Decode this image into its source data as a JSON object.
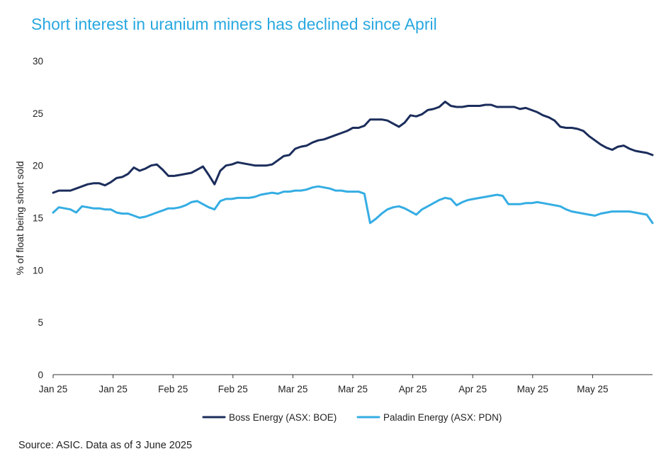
{
  "chart_data": {
    "type": "line",
    "title": "Short interest in uranium miners has declined since April",
    "ylabel": "% of float being short sold",
    "xlabel": "",
    "ylim": [
      0,
      30
    ],
    "yticks": [
      0,
      5,
      10,
      15,
      20,
      25,
      30
    ],
    "xtick_labels": [
      "Jan 25",
      "Jan 25",
      "Feb 25",
      "Feb 25",
      "Mar 25",
      "Mar 25",
      "Apr 25",
      "Apr 25",
      "May 25",
      "May 25"
    ],
    "grid": false,
    "legend_position": "bottom-center",
    "x": [
      "2025-01-02",
      "2025-01-03",
      "2025-01-06",
      "2025-01-07",
      "2025-01-08",
      "2025-01-09",
      "2025-01-10",
      "2025-01-13",
      "2025-01-14",
      "2025-01-15",
      "2025-01-16",
      "2025-01-17",
      "2025-01-20",
      "2025-01-21",
      "2025-01-22",
      "2025-01-23",
      "2025-01-24",
      "2025-01-27",
      "2025-01-28",
      "2025-01-29",
      "2025-01-30",
      "2025-01-31",
      "2025-02-03",
      "2025-02-04",
      "2025-02-05",
      "2025-02-06",
      "2025-02-07",
      "2025-02-10",
      "2025-02-11",
      "2025-02-12",
      "2025-02-13",
      "2025-02-14",
      "2025-02-17",
      "2025-02-18",
      "2025-02-19",
      "2025-02-20",
      "2025-02-21",
      "2025-02-24",
      "2025-02-25",
      "2025-02-26",
      "2025-02-27",
      "2025-02-28",
      "2025-03-03",
      "2025-03-04",
      "2025-03-05",
      "2025-03-06",
      "2025-03-07",
      "2025-03-10",
      "2025-03-11",
      "2025-03-12",
      "2025-03-13",
      "2025-03-14",
      "2025-03-17",
      "2025-03-18",
      "2025-03-19",
      "2025-03-20",
      "2025-03-21",
      "2025-03-24",
      "2025-03-25",
      "2025-03-26",
      "2025-03-27",
      "2025-03-28",
      "2025-03-31",
      "2025-04-01",
      "2025-04-02",
      "2025-04-03",
      "2025-04-04",
      "2025-04-07",
      "2025-04-08",
      "2025-04-09",
      "2025-04-10",
      "2025-04-11",
      "2025-04-14",
      "2025-04-15",
      "2025-04-16",
      "2025-04-17",
      "2025-04-21",
      "2025-04-22",
      "2025-04-23",
      "2025-04-24",
      "2025-04-28",
      "2025-04-29",
      "2025-04-30",
      "2025-05-01",
      "2025-05-02",
      "2025-05-05",
      "2025-05-06",
      "2025-05-07",
      "2025-05-08",
      "2025-05-09",
      "2025-05-12",
      "2025-05-13",
      "2025-05-14",
      "2025-05-15",
      "2025-05-16",
      "2025-05-19",
      "2025-05-20",
      "2025-05-21",
      "2025-05-22",
      "2025-05-23",
      "2025-05-26",
      "2025-05-27",
      "2025-05-28",
      "2025-05-29",
      "2025-05-30"
    ],
    "series": [
      {
        "name": "Boss Energy (ASX: BOE)",
        "color": "#1b2d5b",
        "values": [
          17.4,
          17.6,
          17.6,
          17.6,
          17.8,
          18.0,
          18.2,
          18.3,
          18.3,
          18.1,
          18.4,
          18.8,
          18.9,
          19.2,
          19.8,
          19.5,
          19.7,
          20.0,
          20.1,
          19.6,
          19.0,
          19.0,
          19.1,
          19.2,
          19.3,
          19.6,
          19.9,
          19.1,
          18.2,
          19.5,
          20.0,
          20.1,
          20.3,
          20.2,
          20.1,
          20.0,
          20.0,
          20.0,
          20.1,
          20.5,
          20.9,
          21.0,
          21.6,
          21.8,
          21.9,
          22.2,
          22.4,
          22.5,
          22.7,
          22.9,
          23.1,
          23.3,
          23.6,
          23.6,
          23.8,
          24.4,
          24.4,
          24.4,
          24.3,
          24.0,
          23.7,
          24.1,
          24.8,
          24.7,
          24.9,
          25.3,
          25.4,
          25.6,
          26.1,
          25.7,
          25.6,
          25.6,
          25.7,
          25.7,
          25.7,
          25.8,
          25.8,
          25.6,
          25.6,
          25.6,
          25.6,
          25.4,
          25.5,
          25.3,
          25.1,
          24.8,
          24.6,
          24.3,
          23.7,
          23.6,
          23.6,
          23.5,
          23.3,
          22.8,
          22.4,
          22.0,
          21.7,
          21.5,
          21.8,
          21.9,
          21.6,
          21.4,
          21.3,
          21.2,
          21.0
        ]
      },
      {
        "name": "Paladin Energy (ASX: PDN)",
        "color": "#35ade3",
        "values": [
          15.5,
          16.0,
          15.9,
          15.8,
          15.5,
          16.1,
          16.0,
          15.9,
          15.9,
          15.8,
          15.8,
          15.5,
          15.4,
          15.4,
          15.2,
          15.0,
          15.1,
          15.3,
          15.5,
          15.7,
          15.9,
          15.9,
          16.0,
          16.2,
          16.5,
          16.6,
          16.3,
          16.0,
          15.8,
          16.6,
          16.8,
          16.8,
          16.9,
          16.9,
          16.9,
          17.0,
          17.2,
          17.3,
          17.4,
          17.3,
          17.5,
          17.5,
          17.6,
          17.6,
          17.7,
          17.9,
          18.0,
          17.9,
          17.8,
          17.6,
          17.6,
          17.5,
          17.5,
          17.5,
          17.3,
          14.5,
          14.9,
          15.4,
          15.8,
          16.0,
          16.1,
          15.9,
          15.6,
          15.3,
          15.8,
          16.1,
          16.4,
          16.7,
          16.9,
          16.8,
          16.2,
          16.5,
          16.7,
          16.8,
          16.9,
          17.0,
          17.1,
          17.2,
          17.1,
          16.3,
          16.3,
          16.3,
          16.4,
          16.4,
          16.5,
          16.4,
          16.3,
          16.2,
          16.1,
          15.8,
          15.6,
          15.5,
          15.4,
          15.3,
          15.2,
          15.4,
          15.5,
          15.6,
          15.6,
          15.6,
          15.6,
          15.5,
          15.4,
          15.3,
          14.5
        ]
      }
    ]
  },
  "source_note": "Source: ASIC. Data as of 3 June 2025"
}
